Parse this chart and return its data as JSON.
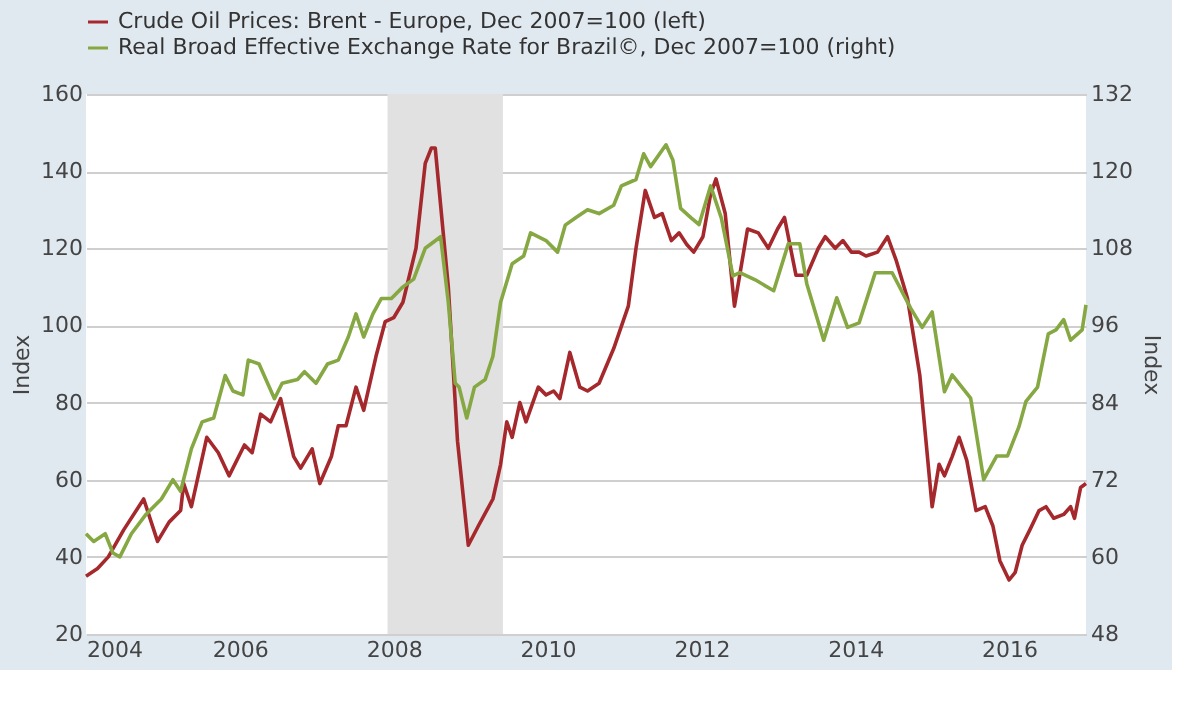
{
  "chart_data": {
    "type": "line",
    "ylabel": "Index",
    "y2label": "Index",
    "legend": "top",
    "grid": "y",
    "line_style": "solid",
    "xlim": [
      2004,
      2017
    ],
    "xticks": [
      2004,
      2006,
      2008,
      2010,
      2012,
      2014,
      2016
    ],
    "ylim": [
      20,
      160
    ],
    "yticks": [
      20,
      40,
      60,
      80,
      100,
      120,
      140,
      160
    ],
    "y2lim": [
      48,
      132
    ],
    "y2ticks": [
      48,
      60,
      72,
      84,
      96,
      108,
      120,
      132
    ],
    "bands": [
      {
        "axis": "x",
        "from": 2007.92,
        "to": 2009.42,
        "color": "#e1e1e1"
      }
    ],
    "series": [
      {
        "name": "Crude Oil Prices: Brent - Europe, Dec 2007=100 (left)",
        "color": "#a5282c",
        "x": [
          2004.0,
          2004.15,
          2004.29,
          2004.49,
          2004.75,
          2004.93,
          2005.08,
          2005.23,
          2005.27,
          2005.37,
          2005.57,
          2005.72,
          2005.86,
          2006.06,
          2006.16,
          2006.27,
          2006.4,
          2006.53,
          2006.7,
          2006.79,
          2006.94,
          2007.04,
          2007.19,
          2007.28,
          2007.38,
          2007.51,
          2007.61,
          2007.77,
          2007.89,
          2008.0,
          2008.12,
          2008.29,
          2008.41,
          2008.49,
          2008.54,
          2008.71,
          2008.83,
          2008.97,
          2009.1,
          2009.29,
          2009.39,
          2009.47,
          2009.54,
          2009.64,
          2009.72,
          2009.88,
          2009.98,
          2010.08,
          2010.16,
          2010.29,
          2010.42,
          2010.52,
          2010.67,
          2010.86,
          2011.05,
          2011.15,
          2011.27,
          2011.39,
          2011.49,
          2011.61,
          2011.71,
          2011.81,
          2011.9,
          2012.02,
          2012.12,
          2012.19,
          2012.31,
          2012.43,
          2012.6,
          2012.74,
          2012.87,
          2012.99,
          2013.08,
          2013.23,
          2013.37,
          2013.52,
          2013.61,
          2013.74,
          2013.84,
          2013.95,
          2014.05,
          2014.14,
          2014.29,
          2014.42,
          2014.53,
          2014.68,
          2014.84,
          2015.0,
          2015.09,
          2015.16,
          2015.26,
          2015.35,
          2015.45,
          2015.57,
          2015.69,
          2015.79,
          2015.88,
          2016.0,
          2016.08,
          2016.17,
          2016.27,
          2016.39,
          2016.48,
          2016.58,
          2016.71,
          2016.8,
          2016.85,
          2016.93,
          2017.0
        ],
        "values": [
          35,
          37,
          40,
          47,
          55,
          44,
          49,
          52,
          59,
          53,
          71,
          67,
          61,
          69,
          67,
          77,
          75,
          81,
          66,
          63,
          68,
          59,
          66,
          74,
          74,
          84,
          78,
          92,
          101,
          102,
          106,
          120,
          142,
          146,
          146,
          110,
          70,
          43,
          48,
          55,
          64,
          75,
          71,
          80,
          75,
          84,
          82,
          83,
          81,
          93,
          84,
          83,
          85,
          94,
          105,
          120,
          135,
          128,
          129,
          122,
          124,
          121,
          119,
          123,
          134,
          138,
          129,
          105,
          125,
          124,
          120,
          125,
          128,
          113,
          113,
          120,
          123,
          120,
          122,
          119,
          119,
          118,
          119,
          123,
          117,
          107,
          87,
          53,
          64,
          61,
          66,
          71,
          65,
          52,
          53,
          48,
          39,
          34,
          36,
          43,
          47,
          52,
          53,
          50,
          51,
          53,
          50,
          58,
          59
        ]
      },
      {
        "name": "Real Broad Effective Exchange Rate for Brazil©, Dec 2007=100 (right)",
        "color": "#86a843",
        "axis": "y2",
        "x": [
          2004.0,
          2004.1,
          2004.25,
          2004.35,
          2004.44,
          2004.59,
          2004.78,
          2004.98,
          2005.13,
          2005.23,
          2005.37,
          2005.51,
          2005.66,
          2005.81,
          2005.91,
          2006.04,
          2006.11,
          2006.25,
          2006.45,
          2006.55,
          2006.75,
          2006.84,
          2006.99,
          2007.14,
          2007.28,
          2007.41,
          2007.51,
          2007.61,
          2007.73,
          2007.84,
          2007.97,
          2008.12,
          2008.26,
          2008.41,
          2008.61,
          2008.71,
          2008.8,
          2008.85,
          2008.95,
          2009.05,
          2009.19,
          2009.29,
          2009.39,
          2009.54,
          2009.69,
          2009.78,
          2009.98,
          2010.13,
          2010.23,
          2010.37,
          2010.52,
          2010.67,
          2010.86,
          2010.96,
          2011.15,
          2011.25,
          2011.34,
          2011.54,
          2011.63,
          2011.73,
          2011.87,
          2011.97,
          2012.12,
          2012.26,
          2012.41,
          2012.5,
          2012.7,
          2012.94,
          2013.13,
          2013.28,
          2013.37,
          2013.59,
          2013.76,
          2013.9,
          2014.05,
          2014.26,
          2014.48,
          2014.72,
          2014.87,
          2015.0,
          2015.16,
          2015.26,
          2015.5,
          2015.67,
          2015.84,
          2015.98,
          2016.13,
          2016.22,
          2016.37,
          2016.51,
          2016.61,
          2016.71,
          2016.8,
          2016.95,
          2017.0
        ],
        "values": [
          63.6,
          62.4,
          63.6,
          60.6,
          60.0,
          63.6,
          66.6,
          69.0,
          72.0,
          70.2,
          76.8,
          81.0,
          81.6,
          88.2,
          85.8,
          85.2,
          90.6,
          90.0,
          84.6,
          87.0,
          87.6,
          88.8,
          87.0,
          90.0,
          90.6,
          94.2,
          97.8,
          94.2,
          97.8,
          100.2,
          100.2,
          102.0,
          103.2,
          108.0,
          109.8,
          99.6,
          87.0,
          86.4,
          81.6,
          86.4,
          87.6,
          91.2,
          99.6,
          105.6,
          106.8,
          110.4,
          109.2,
          107.4,
          111.6,
          112.8,
          114.0,
          113.4,
          114.7,
          117.7,
          118.7,
          122.7,
          120.7,
          124.1,
          121.7,
          114.2,
          112.7,
          111.7,
          117.7,
          112.7,
          103.7,
          104.2,
          103.1,
          101.4,
          108.7,
          108.7,
          102.5,
          93.7,
          100.3,
          95.7,
          96.4,
          104.2,
          104.2,
          98.7,
          95.7,
          98.1,
          85.7,
          88.3,
          84.7,
          72.0,
          75.7,
          75.7,
          80.3,
          84.2,
          86.4,
          94.7,
          95.3,
          96.9,
          93.7,
          95.3,
          99.2
        ]
      }
    ]
  }
}
